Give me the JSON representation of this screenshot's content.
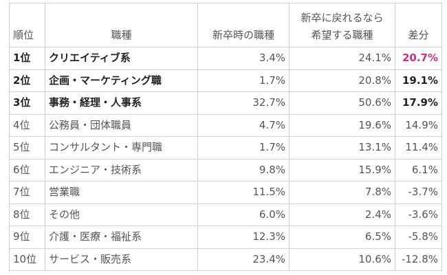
{
  "headers": {
    "rank": "順位",
    "job": "職種",
    "at_graduation": "新卒時の職種",
    "desired_line1": "新卒に戻れるなら",
    "desired_line2": "希望する職種",
    "difference": "差分"
  },
  "rows": [
    {
      "rank": "1位",
      "job": "クリエイティブ系",
      "at_graduation": "3.4%",
      "desired": "24.1%",
      "difference": "20.7%"
    },
    {
      "rank": "2位",
      "job": "企画・マーケティング職",
      "at_graduation": "1.7%",
      "desired": "20.8%",
      "difference": "19.1%"
    },
    {
      "rank": "3位",
      "job": "事務・経理・人事系",
      "at_graduation": "32.7%",
      "desired": "50.6%",
      "difference": "17.9%"
    },
    {
      "rank": "4位",
      "job": "公務員・団体職員",
      "at_graduation": "4.7%",
      "desired": "19.6%",
      "difference": "14.9%"
    },
    {
      "rank": "5位",
      "job": "コンサルタント・専門職",
      "at_graduation": "1.7%",
      "desired": "13.1%",
      "difference": "11.4%"
    },
    {
      "rank": "6位",
      "job": "エンジニア・技術系",
      "at_graduation": "9.8%",
      "desired": "15.9%",
      "difference": "6.1%"
    },
    {
      "rank": "7位",
      "job": "営業職",
      "at_graduation": "11.5%",
      "desired": "7.8%",
      "difference": "-3.7%"
    },
    {
      "rank": "8位",
      "job": "その他",
      "at_graduation": "6.0%",
      "desired": "2.4%",
      "difference": "-3.6%"
    },
    {
      "rank": "9位",
      "job": "介護・医療・福祉系",
      "at_graduation": "12.3%",
      "desired": "6.5%",
      "difference": "-5.8%"
    },
    {
      "rank": "10位",
      "job": "サービス・販売系",
      "at_graduation": "23.4%",
      "desired": "10.6%",
      "difference": "-12.8%"
    }
  ],
  "colors": {
    "highlight": "#cc2f86",
    "text": "#555555",
    "bold_text": "#222222",
    "border": "#cfcfcf"
  }
}
